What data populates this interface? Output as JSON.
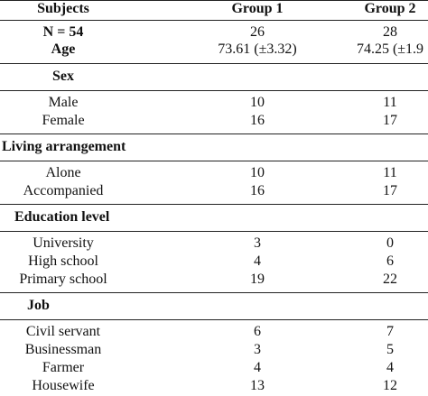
{
  "table": {
    "header": [
      "Subjects",
      "Group 1",
      "Group 2"
    ],
    "summary_rows": [
      [
        "N = 54",
        "26",
        "28"
      ],
      [
        "Age",
        "73.61 (±3.32)",
        "74.25 (±1.9"
      ]
    ],
    "sections": [
      {
        "title": "Sex",
        "rows": [
          [
            "Male",
            "10",
            "11"
          ],
          [
            "Female",
            "16",
            "17"
          ]
        ]
      },
      {
        "title": "Living arrangement",
        "rows": [
          [
            "Alone",
            "10",
            "11"
          ],
          [
            "Accompanied",
            "16",
            "17"
          ]
        ]
      },
      {
        "title": "Education level",
        "rows": [
          [
            "University",
            "3",
            "0"
          ],
          [
            "High school",
            "4",
            "6"
          ],
          [
            "Primary school",
            "19",
            "22"
          ]
        ]
      },
      {
        "title": "Job",
        "rows": [
          [
            "Civil servant",
            "6",
            "7"
          ],
          [
            "Businessman",
            "3",
            "5"
          ],
          [
            "Farmer",
            "4",
            "4"
          ],
          [
            "Housewife",
            "13",
            "12"
          ]
        ]
      }
    ]
  }
}
